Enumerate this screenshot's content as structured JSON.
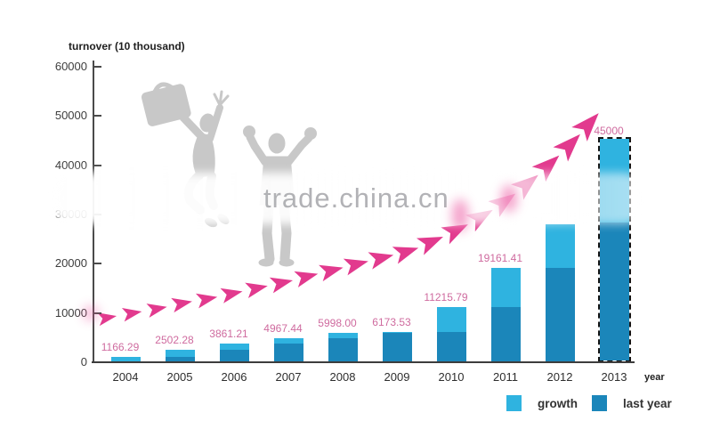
{
  "title": "turnover (10 thousand)",
  "watermark": {
    "text": "trade.china.cn"
  },
  "axis": {
    "x_label": "year",
    "y_ticks": [
      0,
      10000,
      20000,
      30000,
      40000,
      50000,
      60000
    ]
  },
  "legend": {
    "items": [
      {
        "label": "growth",
        "color": "#2fb3e0"
      },
      {
        "label": "last year",
        "color": "#1b86ba"
      }
    ]
  },
  "colors": {
    "growth": "#2fb3e0",
    "last_year": "#1b86ba",
    "arrow": "#e23a8e",
    "value_label": "#cf6b9f",
    "axis": "#4a4a4a"
  },
  "chart_data": {
    "type": "bar",
    "stacked": true,
    "title": "turnover (10 thousand)",
    "xlabel": "year",
    "ylabel": "turnover (10 thousand)",
    "ylim": [
      0,
      60000
    ],
    "grid": false,
    "legend_position": "bottom-right",
    "categories": [
      "2004",
      "2005",
      "2006",
      "2007",
      "2008",
      "2009",
      "2010",
      "2011",
      "2012",
      "2013"
    ],
    "series": [
      {
        "name": "last year",
        "color": "#1b86ba",
        "values": [
          0,
          1166.29,
          2502.28,
          3861.21,
          4967.44,
          5998.0,
          6173.53,
          11215.79,
          19161.41,
          28000
        ]
      },
      {
        "name": "growth",
        "color": "#2fb3e0",
        "values": [
          1166.29,
          1335.99,
          1358.93,
          1106.23,
          1030.56,
          175.53,
          5042.26,
          7945.62,
          8838.59,
          17000
        ]
      }
    ],
    "totals": [
      1166.29,
      2502.28,
      3861.21,
      4967.44,
      5998.0,
      6173.53,
      11215.79,
      19161.41,
      28000,
      45000
    ],
    "bar_labels": [
      "1166.29",
      "2502.28",
      "3861.21",
      "4967.44",
      "5998.00",
      "6173.53",
      "11215.79",
      "19161.41",
      "",
      "45000"
    ],
    "projected_category": "2013"
  }
}
